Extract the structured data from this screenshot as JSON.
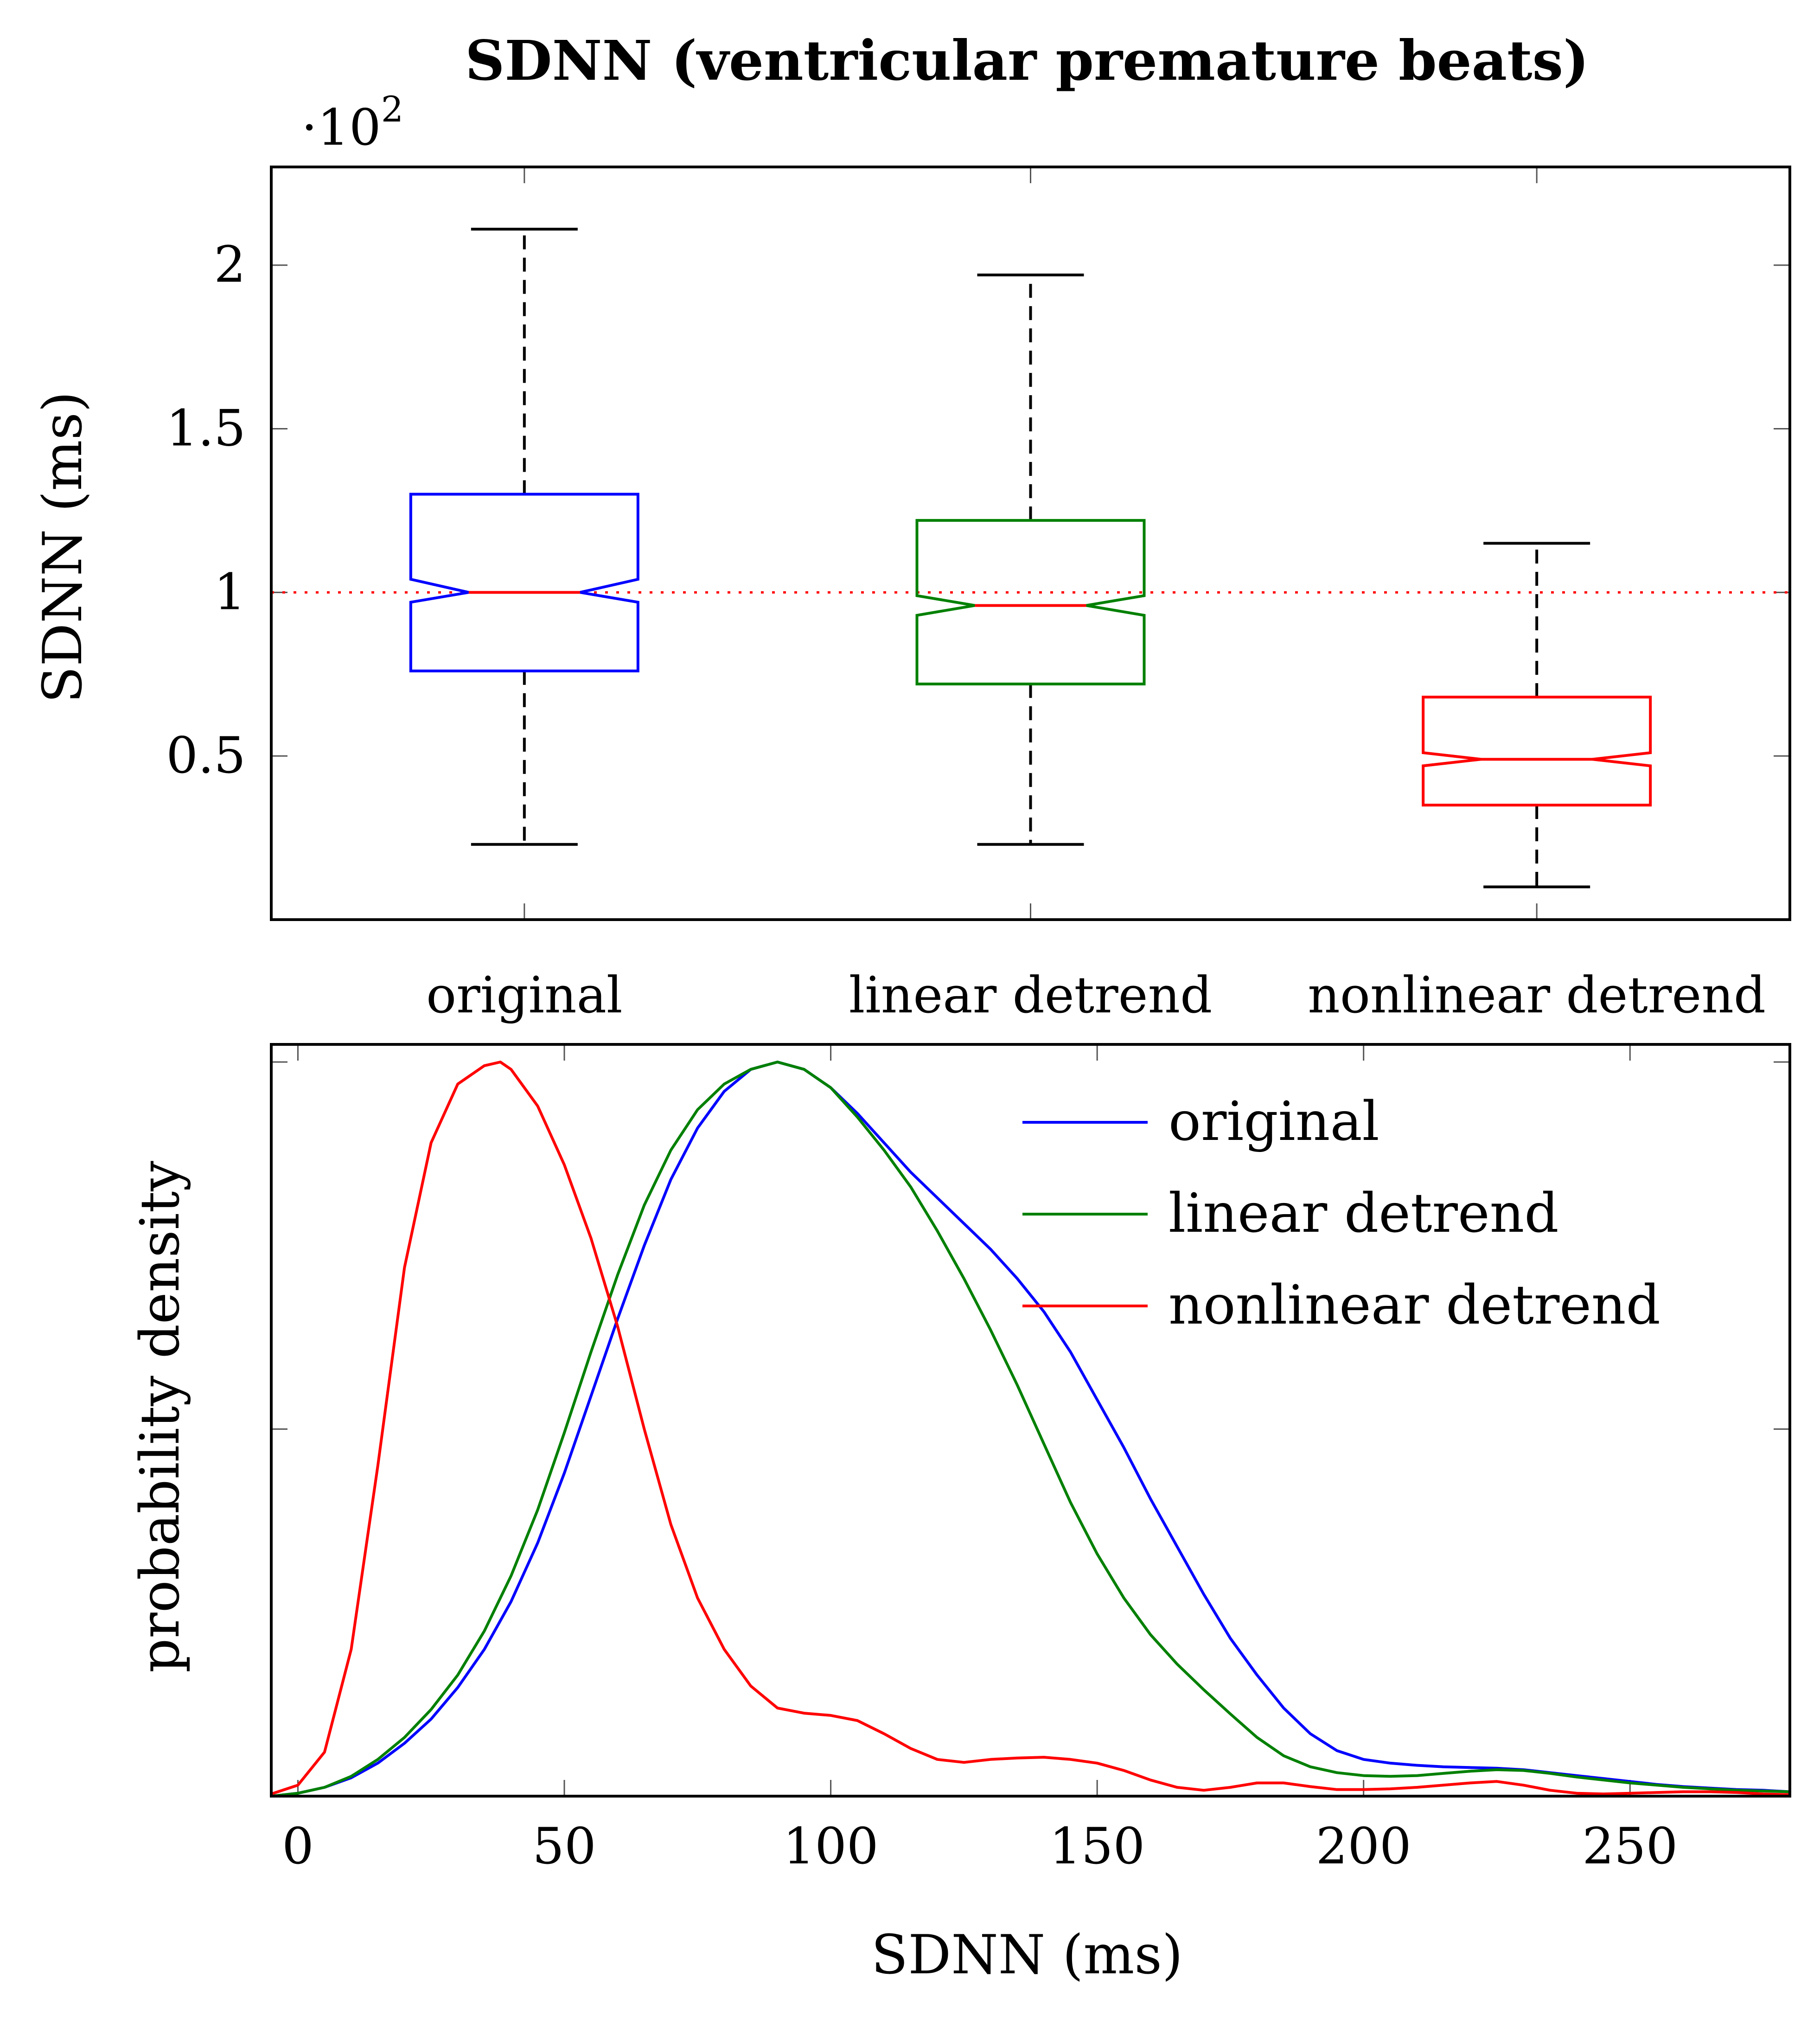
{
  "chart_data": [
    {
      "type": "boxplot",
      "title": "SDNN (ventricular premature beats)",
      "ylabel": "SDNN (ms)",
      "xlabel": "",
      "y_scale_note": "·10",
      "y_scale_exponent": "2",
      "ylim": [
        0.0,
        2.3
      ],
      "yticks": [
        {
          "value": 0.5,
          "label": "0.5"
        },
        {
          "value": 1.0,
          "label": "1"
        },
        {
          "value": 1.5,
          "label": "1.5"
        },
        {
          "value": 2.0,
          "label": "2"
        }
      ],
      "reference_line": 1.0,
      "categories": [
        "original",
        "linear detrend",
        "nonlinear detrend"
      ],
      "boxes": [
        {
          "name": "original",
          "color": "#0000ff",
          "whisker_low": 0.23,
          "q1": 0.76,
          "notch_low": 0.97,
          "median": 1.0,
          "notch_high": 1.04,
          "q3": 1.3,
          "whisker_high": 2.11
        },
        {
          "name": "linear detrend",
          "color": "#008000",
          "whisker_low": 0.23,
          "q1": 0.72,
          "notch_low": 0.93,
          "median": 0.96,
          "notch_high": 0.99,
          "q3": 1.22,
          "whisker_high": 1.97
        },
        {
          "name": "nonlinear detrend",
          "color": "#ff0000",
          "whisker_low": 0.1,
          "q1": 0.35,
          "notch_low": 0.47,
          "median": 0.49,
          "notch_high": 0.51,
          "q3": 0.68,
          "whisker_high": 1.15
        }
      ]
    },
    {
      "type": "line",
      "title": "",
      "xlabel": "SDNN (ms)",
      "ylabel": "probability density",
      "xlim": [
        -5,
        280
      ],
      "ylim": [
        0,
        1.01
      ],
      "xticks": [
        0,
        50,
        100,
        150,
        200,
        250
      ],
      "legend_position": "top-right",
      "series": [
        {
          "name": "original",
          "color": "#0000ff",
          "x": [
            -5,
            0,
            5,
            10,
            15,
            20,
            25,
            30,
            35,
            40,
            45,
            50,
            55,
            60,
            65,
            70,
            75,
            80,
            85,
            90,
            95,
            100,
            105,
            110,
            115,
            120,
            125,
            130,
            135,
            140,
            145,
            150,
            155,
            160,
            165,
            170,
            175,
            180,
            185,
            190,
            195,
            200,
            205,
            210,
            215,
            220,
            225,
            230,
            235,
            240,
            245,
            250,
            255,
            260,
            265,
            270,
            275,
            280
          ],
          "values": [
            0.0,
            0.004,
            0.012,
            0.025,
            0.045,
            0.072,
            0.105,
            0.148,
            0.2,
            0.265,
            0.345,
            0.44,
            0.545,
            0.65,
            0.75,
            0.84,
            0.91,
            0.96,
            0.99,
            1.0,
            0.99,
            0.965,
            0.93,
            0.89,
            0.85,
            0.815,
            0.78,
            0.745,
            0.705,
            0.66,
            0.605,
            0.54,
            0.475,
            0.405,
            0.34,
            0.275,
            0.215,
            0.165,
            0.12,
            0.085,
            0.062,
            0.05,
            0.045,
            0.042,
            0.04,
            0.039,
            0.038,
            0.036,
            0.032,
            0.028,
            0.024,
            0.02,
            0.016,
            0.013,
            0.011,
            0.009,
            0.008,
            0.006
          ]
        },
        {
          "name": "linear detrend",
          "color": "#008000",
          "x": [
            -5,
            0,
            5,
            10,
            15,
            20,
            25,
            30,
            35,
            40,
            45,
            50,
            55,
            60,
            65,
            70,
            75,
            80,
            85,
            90,
            95,
            100,
            105,
            110,
            115,
            120,
            125,
            130,
            135,
            140,
            145,
            150,
            155,
            160,
            165,
            170,
            175,
            180,
            185,
            190,
            195,
            200,
            205,
            210,
            215,
            220,
            225,
            230,
            235,
            240,
            245,
            250,
            255,
            260,
            265,
            270,
            275,
            280
          ],
          "values": [
            0.0,
            0.004,
            0.012,
            0.027,
            0.05,
            0.08,
            0.118,
            0.165,
            0.225,
            0.3,
            0.39,
            0.495,
            0.605,
            0.71,
            0.805,
            0.88,
            0.935,
            0.97,
            0.99,
            1.0,
            0.99,
            0.965,
            0.925,
            0.88,
            0.83,
            0.77,
            0.705,
            0.635,
            0.56,
            0.48,
            0.4,
            0.33,
            0.27,
            0.22,
            0.18,
            0.145,
            0.112,
            0.08,
            0.055,
            0.04,
            0.032,
            0.028,
            0.027,
            0.028,
            0.031,
            0.034,
            0.036,
            0.035,
            0.031,
            0.026,
            0.022,
            0.018,
            0.015,
            0.012,
            0.01,
            0.008,
            0.007,
            0.006
          ]
        },
        {
          "name": "nonlinear detrend",
          "color": "#ff0000",
          "x": [
            -5,
            0,
            5,
            10,
            15,
            20,
            25,
            30,
            35,
            38,
            40,
            45,
            50,
            55,
            60,
            65,
            70,
            75,
            80,
            85,
            90,
            95,
            100,
            105,
            110,
            115,
            120,
            125,
            130,
            135,
            140,
            145,
            150,
            155,
            160,
            165,
            170,
            175,
            180,
            185,
            190,
            195,
            200,
            205,
            210,
            215,
            220,
            225,
            230,
            235,
            240,
            245,
            250,
            255,
            260,
            265,
            270,
            275,
            280
          ],
          "values": [
            0.003,
            0.015,
            0.06,
            0.2,
            0.45,
            0.72,
            0.89,
            0.97,
            0.995,
            1.0,
            0.99,
            0.94,
            0.86,
            0.76,
            0.64,
            0.5,
            0.37,
            0.27,
            0.2,
            0.15,
            0.12,
            0.113,
            0.11,
            0.103,
            0.085,
            0.065,
            0.05,
            0.046,
            0.05,
            0.052,
            0.053,
            0.05,
            0.045,
            0.035,
            0.022,
            0.012,
            0.008,
            0.012,
            0.018,
            0.018,
            0.013,
            0.009,
            0.009,
            0.01,
            0.012,
            0.015,
            0.018,
            0.02,
            0.015,
            0.008,
            0.004,
            0.003,
            0.004,
            0.005,
            0.006,
            0.006,
            0.005,
            0.003,
            0.002
          ]
        }
      ]
    }
  ]
}
